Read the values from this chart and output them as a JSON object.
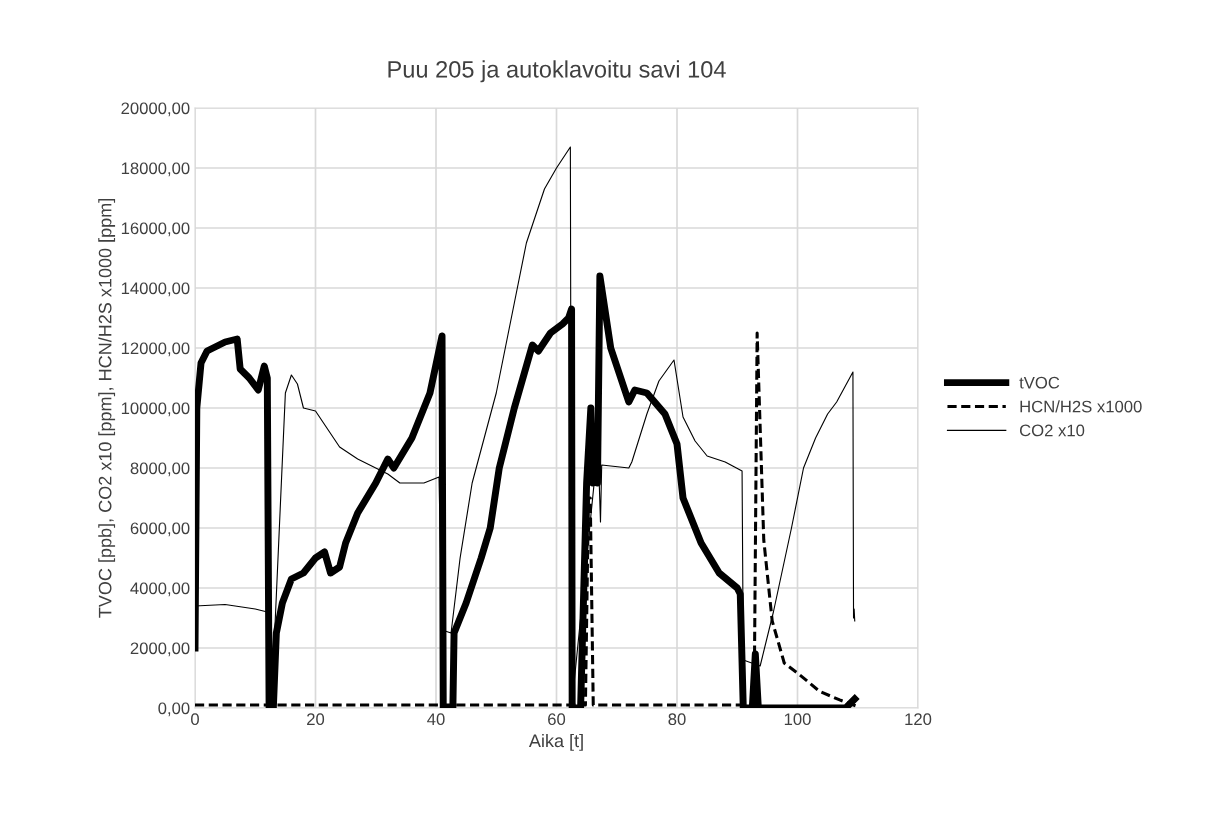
{
  "chart_data": {
    "type": "line",
    "title": "Puu 205 ja autoklavoitu savi 104",
    "xlabel": "Aika [t]",
    "ylabel": "TVOC [ppb], CO2 x10 [ppm], HCN/H2S x1000 [ppm]",
    "xlim": [
      0,
      120
    ],
    "xticks": [
      0,
      20,
      40,
      60,
      80,
      100,
      120
    ],
    "ylim": [
      0,
      20000
    ],
    "yticks": [
      {
        "value": 0,
        "label": "0,00"
      },
      {
        "value": 2000,
        "label": "2000,00"
      },
      {
        "value": 4000,
        "label": "4000,00"
      },
      {
        "value": 6000,
        "label": "6000,00"
      },
      {
        "value": 8000,
        "label": "8000,00"
      },
      {
        "value": 10000,
        "label": "10000,00"
      },
      {
        "value": 12000,
        "label": "12000,00"
      },
      {
        "value": 14000,
        "label": "14000,00"
      },
      {
        "value": 16000,
        "label": "16000,00"
      },
      {
        "value": 18000,
        "label": "18000,00"
      },
      {
        "value": 20000,
        "label": "20000,00"
      }
    ],
    "grid": true,
    "legend": "right",
    "marker": "none",
    "series": [
      {
        "name": "tVOC",
        "color": "#000000",
        "line_style": "solid",
        "x": [
          0,
          0.3,
          1,
          2,
          5,
          7,
          7.5,
          9,
          10.5,
          11.5,
          12,
          12.3,
          13,
          13.5,
          14.5,
          16,
          18,
          20,
          21.5,
          22.5,
          24,
          25,
          27,
          30,
          32,
          33,
          36,
          39,
          41,
          41.2,
          42.8,
          43,
          45,
          47.5,
          49,
          50.5,
          53,
          56,
          57,
          59,
          61,
          62,
          62.5,
          62.6,
          64,
          65,
          65.7,
          66,
          66.4,
          66.8,
          67.2,
          69,
          72,
          73,
          75,
          78,
          80,
          81,
          84,
          87,
          90,
          90.5,
          91,
          92.5,
          93,
          93.5,
          108,
          109.5
        ],
        "values": [
          2000,
          10000,
          11500,
          11900,
          12200,
          12300,
          11300,
          11000,
          10600,
          11400,
          11000,
          0,
          0,
          2500,
          3500,
          4300,
          4500,
          5000,
          5200,
          4500,
          4700,
          5500,
          6500,
          7500,
          8300,
          8000,
          9000,
          10500,
          12400,
          0,
          0,
          2500,
          3500,
          5000,
          6000,
          8000,
          10000,
          12100,
          11900,
          12500,
          12800,
          13000,
          13300,
          0,
          0,
          7500,
          10000,
          7500,
          8800,
          7500,
          14400,
          12000,
          10200,
          10600,
          10500,
          9800,
          8800,
          7000,
          5500,
          4500,
          4000,
          3800,
          0,
          0,
          1800,
          0,
          0,
          300
        ]
      },
      {
        "name": "HCN/H2S x1000",
        "color": "#000000",
        "line_style": "dashed",
        "x": [
          0,
          20,
          40,
          64.8,
          65.3,
          65.6,
          66.1,
          70,
          80,
          92.8,
          93.3,
          94.4,
          95.8,
          97.8,
          100.4,
          103.7,
          107,
          109.7
        ],
        "values": [
          100,
          100,
          100,
          100,
          7000,
          7000,
          100,
          100,
          100,
          100,
          12500,
          5600,
          2900,
          1500,
          1100,
          550,
          270,
          70
        ]
      },
      {
        "name": "CO2 x10",
        "color": "#000000",
        "line_style": "solid",
        "x": [
          0,
          5,
          10,
          12,
          12.5,
          13,
          14,
          15,
          16,
          17,
          18,
          20,
          22,
          24,
          27,
          30,
          32,
          34,
          38,
          40.5,
          41,
          42.5,
          44,
          46,
          48,
          50,
          53,
          55,
          58,
          60,
          62.3,
          62.5,
          66.5,
          67,
          67.3,
          67.5,
          72,
          72.5,
          75,
          77,
          79.5,
          81,
          83,
          85,
          88,
          90.8,
          91,
          93.8,
          96,
          99,
          101,
          103,
          105,
          106.5,
          109.2,
          109.3,
          109.4,
          109.5
        ],
        "values": [
          3400,
          3450,
          3300,
          3200,
          0,
          1500,
          6000,
          10500,
          11100,
          10800,
          10000,
          9900,
          9300,
          8700,
          8300,
          8000,
          7800,
          7500,
          7500,
          7700,
          2600,
          2500,
          5000,
          7500,
          9000,
          10500,
          13500,
          15500,
          17300,
          18000,
          18700,
          0,
          8000,
          8100,
          6200,
          8100,
          8000,
          8200,
          9800,
          10900,
          11600,
          9700,
          8900,
          8400,
          8200,
          7900,
          1600,
          1400,
          3200,
          6000,
          8000,
          9000,
          9800,
          10200,
          11200,
          3000,
          3300,
          2900
        ]
      }
    ]
  }
}
